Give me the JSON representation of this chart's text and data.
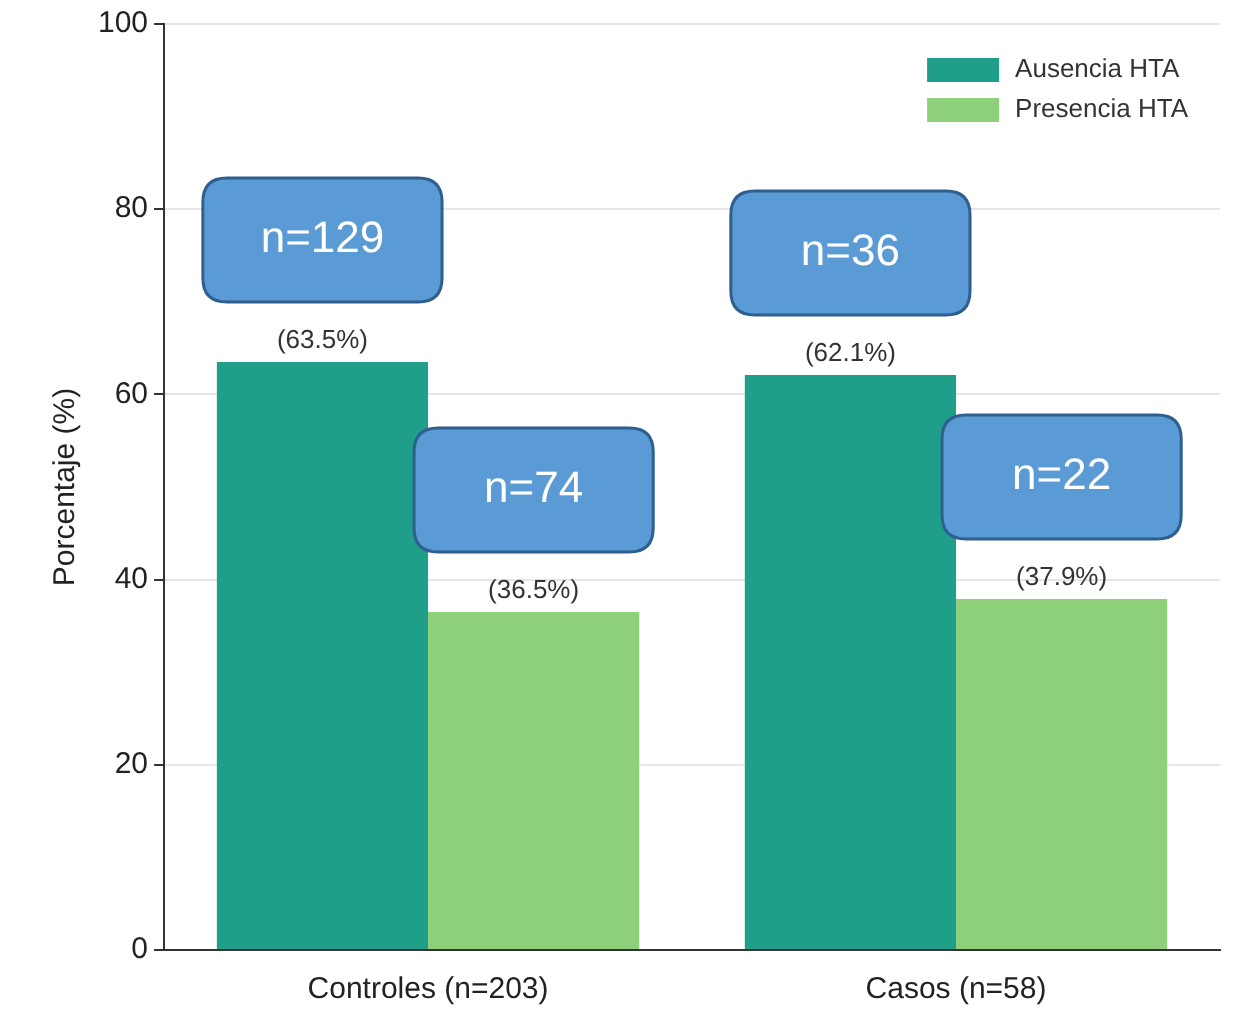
{
  "chart_data": {
    "type": "bar",
    "ylabel": "Porcentaje (%)",
    "categories": [
      "Controles (n=203)",
      "Casos (n=58)"
    ],
    "series": [
      {
        "name": "Ausencia HTA",
        "color": "#1f9e89",
        "values": [
          63.5,
          62.1
        ],
        "value_labels": [
          "(63.5%)",
          "(62.1%)"
        ]
      },
      {
        "name": "Presencia HTA",
        "color": "#8fd07a",
        "values": [
          36.5,
          37.9
        ],
        "value_labels": [
          "(36.5%)",
          "(37.9%)"
        ]
      }
    ],
    "annotations": [
      {
        "text": "n=129",
        "x": "Controles (n=203)",
        "y": 63.5
      },
      {
        "text": "n=74",
        "x": "Controles (n=203)",
        "y": 36.5
      },
      {
        "text": "n=36",
        "x": "Casos (n=58)",
        "y": 62.1
      },
      {
        "text": "n=22",
        "x": "Casos (n=58)",
        "y": 37.9
      }
    ],
    "ylim": [
      0,
      100
    ],
    "yticks": [
      0,
      20,
      40,
      60,
      80,
      100
    ],
    "grid": "y",
    "legend": "top right"
  }
}
